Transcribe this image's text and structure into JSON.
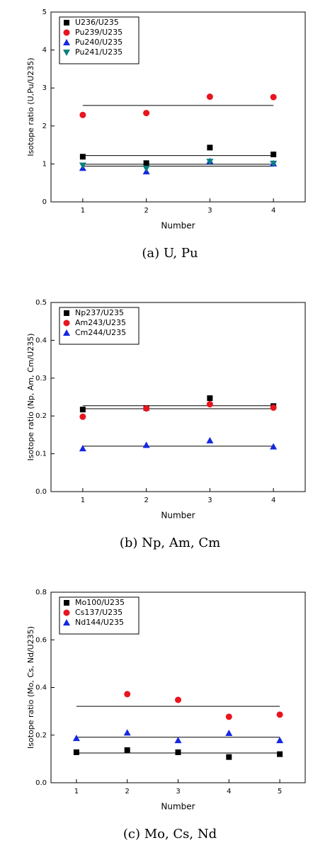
{
  "chart_data": [
    {
      "type": "scatter",
      "caption": "(a) U, Pu",
      "xlabel": "Number",
      "ylabel": "Isotope ratio (U,Pu/U235)",
      "x": [
        1,
        2,
        3,
        4
      ],
      "xlim": [
        0.5,
        4.5
      ],
      "xticks": [
        1,
        2,
        3,
        4
      ],
      "ylim": [
        0,
        5
      ],
      "yticks": [
        0,
        1,
        2,
        3,
        4,
        5
      ],
      "series": [
        {
          "name": "U236/U235",
          "color": "#000000",
          "marker": "square",
          "values": [
            1.19,
            1.02,
            1.43,
            1.25
          ]
        },
        {
          "name": "Pu239/U235",
          "color": "#e8141e",
          "marker": "circle",
          "values": [
            2.29,
            2.34,
            2.77,
            2.76
          ]
        },
        {
          "name": "Pu240/U235",
          "color": "#1428e0",
          "marker": "triangle-up",
          "values": [
            0.89,
            0.8,
            1.07,
            1.01
          ]
        },
        {
          "name": "Pu241/U235",
          "color": "#0a8080",
          "marker": "triangle-down",
          "values": [
            0.96,
            0.88,
            1.06,
            1.01
          ]
        }
      ],
      "mean_lines": [
        2.54,
        1.22,
        0.99,
        0.94
      ]
    },
    {
      "type": "scatter",
      "caption": "(b) Np, Am, Cm",
      "xlabel": "Number",
      "ylabel": "Isotope ratio (Np, Am, Cm/U235)",
      "x": [
        1,
        2,
        3,
        4
      ],
      "xlim": [
        0.5,
        4.5
      ],
      "xticks": [
        1,
        2,
        3,
        4
      ],
      "ylim": [
        0,
        0.5
      ],
      "yticks": [
        {
          "value": 0,
          "label": "0.0"
        },
        0.1,
        0.2,
        0.3,
        0.4,
        0.5
      ],
      "series": [
        {
          "name": "Np237/U235",
          "color": "#000000",
          "marker": "square",
          "values": [
            0.217,
            0.221,
            0.247,
            0.226
          ]
        },
        {
          "name": "Am243/U235",
          "color": "#e8141e",
          "marker": "circle",
          "values": [
            0.198,
            0.22,
            0.231,
            0.222
          ]
        },
        {
          "name": "Cm244/U235",
          "color": "#1428e0",
          "marker": "triangle-up",
          "values": [
            0.114,
            0.123,
            0.135,
            0.119
          ]
        }
      ],
      "mean_lines": [
        0.227,
        0.219,
        0.12
      ]
    },
    {
      "type": "scatter",
      "caption": "(c) Mo, Cs, Nd",
      "xlabel": "Number",
      "ylabel": "Isotope ratio (Mo, Cs, Nd/U235)",
      "x": [
        1,
        2,
        3,
        4,
        5
      ],
      "xlim": [
        0.5,
        5.5
      ],
      "xticks": [
        1,
        2,
        3,
        4,
        5
      ],
      "ylim": [
        0,
        0.8
      ],
      "yticks": [
        {
          "value": 0,
          "label": "0.0"
        },
        0.2,
        0.4,
        0.6,
        0.8
      ],
      "series": [
        {
          "name": "Mo100/U235",
          "color": "#000000",
          "marker": "square",
          "values": [
            0.128,
            0.137,
            0.128,
            0.108,
            0.12
          ]
        },
        {
          "name": "Cs137/U235",
          "color": "#e8141e",
          "marker": "circle",
          "values": [
            null,
            0.372,
            0.348,
            0.277,
            0.286
          ]
        },
        {
          "name": "Nd144/U235",
          "color": "#1428e0",
          "marker": "triangle-up",
          "values": [
            0.187,
            0.21,
            0.178,
            0.208,
            0.178
          ]
        }
      ],
      "mean_lines": [
        0.321,
        0.191,
        0.125
      ]
    }
  ]
}
